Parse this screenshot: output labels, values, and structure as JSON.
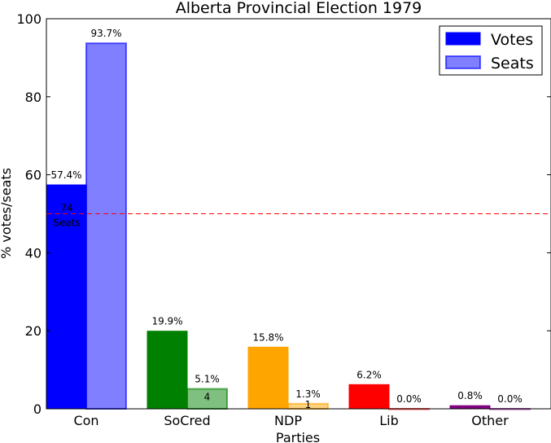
{
  "chart_data": {
    "type": "bar",
    "title": "Alberta Provincial Election 1979",
    "xlabel": "Parties",
    "ylabel": "% votes/seats",
    "ylim": [
      0,
      100
    ],
    "yticks": [
      0,
      20,
      40,
      60,
      80,
      100
    ],
    "grid": false,
    "legend_position": "top-right",
    "categories": [
      "Con",
      "SoCred",
      "NDP",
      "Lib",
      "Other"
    ],
    "colors": [
      "#0000ff",
      "#008000",
      "#ffa500",
      "#ff0000",
      "#800080"
    ],
    "series": [
      {
        "name": "Votes",
        "values": [
          57.4,
          19.9,
          15.8,
          6.2,
          0.8
        ],
        "labels": [
          "57.4%",
          "19.9%",
          "15.8%",
          "6.2%",
          "0.8%"
        ]
      },
      {
        "name": "Seats",
        "values": [
          93.7,
          5.1,
          1.3,
          0.0,
          0.0
        ],
        "labels": [
          "93.7%",
          "5.1%",
          "1.3%",
          "0.0%",
          "0.0%"
        ],
        "seat_counts": [
          "74",
          "4",
          "1",
          "",
          ""
        ]
      }
    ],
    "seat_counts_unit": "Seats",
    "majority_line": 50
  }
}
